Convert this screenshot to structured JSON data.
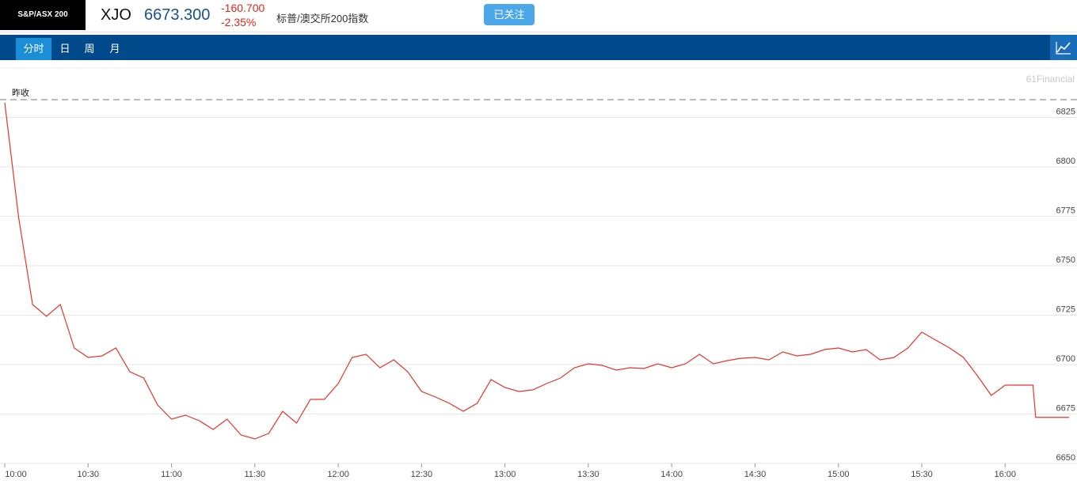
{
  "header": {
    "logo": "S&P/ASX 200",
    "symbol": "XJO",
    "price": "6673.300",
    "change": "-160.700",
    "change_pct": "-2.35%",
    "name": "标普/澳交所200指数",
    "button": "已关注"
  },
  "tabs": [
    "分时",
    "日",
    "周",
    "月"
  ],
  "chart_data": {
    "type": "line",
    "watermark": "61Financial",
    "color": "#e8332a",
    "reference_line": {
      "label": "昨收",
      "value": 6834
    },
    "x": [
      600,
      605,
      610,
      615,
      620,
      625,
      630,
      635,
      640,
      645,
      650,
      655,
      660,
      665,
      670,
      675,
      680,
      685,
      690,
      695,
      700,
      705,
      710,
      715,
      720,
      725,
      730,
      735,
      740,
      745,
      750,
      755,
      760,
      765,
      770,
      775,
      780,
      785,
      790,
      795,
      800,
      805,
      810,
      815,
      820,
      825,
      830,
      835,
      840,
      845,
      850,
      855,
      860,
      865,
      870,
      875,
      880,
      885,
      890,
      895,
      900,
      905,
      910,
      915,
      920,
      925,
      930,
      935,
      940,
      945,
      950,
      955,
      960,
      965,
      970,
      971,
      980,
      983
    ],
    "values": [
      6832.4,
      6774.4,
      6730.4,
      6724.4,
      6730.4,
      6708.4,
      6703.6,
      6704.4,
      6708.4,
      6696.4,
      6693.2,
      6679.6,
      6672.4,
      6674.4,
      6671.6,
      6667.2,
      6672.4,
      6664.4,
      6662.4,
      6665.2,
      6676.4,
      6670.4,
      6682.4,
      6682.4,
      6690.4,
      6703.6,
      6705.2,
      6698.4,
      6702.4,
      6696.4,
      6686.4,
      6683.6,
      6680.4,
      6676.4,
      6680.4,
      6692.4,
      6688.4,
      6686.4,
      6687.2,
      6690.4,
      6693.2,
      6698.4,
      6700.4,
      6699.6,
      6697.2,
      6698.4,
      6698.0,
      6700.4,
      6698.4,
      6700.4,
      6705.2,
      6700.4,
      6702.0,
      6703.2,
      6703.6,
      6702.4,
      6706.4,
      6704.4,
      6705.2,
      6707.6,
      6708.4,
      6706.4,
      6707.6,
      6702.4,
      6703.6,
      6708.4,
      6716.4,
      6712.4,
      6708.4,
      6703.6,
      6694.4,
      6684.4,
      6689.6,
      6689.6,
      6689.6,
      6673.3,
      6673.3,
      6673.3
    ],
    "xlim": [
      600,
      985
    ],
    "xticks": [
      {
        "value": 600,
        "label": "10:00"
      },
      {
        "value": 630,
        "label": "10:30"
      },
      {
        "value": 660,
        "label": "11:00"
      },
      {
        "value": 690,
        "label": "11:30"
      },
      {
        "value": 720,
        "label": "12:00"
      },
      {
        "value": 750,
        "label": "12:30"
      },
      {
        "value": 780,
        "label": "13:00"
      },
      {
        "value": 810,
        "label": "13:30"
      },
      {
        "value": 840,
        "label": "14:00"
      },
      {
        "value": 870,
        "label": "14:30"
      },
      {
        "value": 900,
        "label": "15:00"
      },
      {
        "value": 930,
        "label": "15:30"
      },
      {
        "value": 960,
        "label": "16:00"
      }
    ],
    "ylim": [
      6650,
      6850
    ],
    "yticks": [
      6650,
      6675,
      6700,
      6725,
      6750,
      6775,
      6800,
      6825
    ],
    "grid": true
  }
}
